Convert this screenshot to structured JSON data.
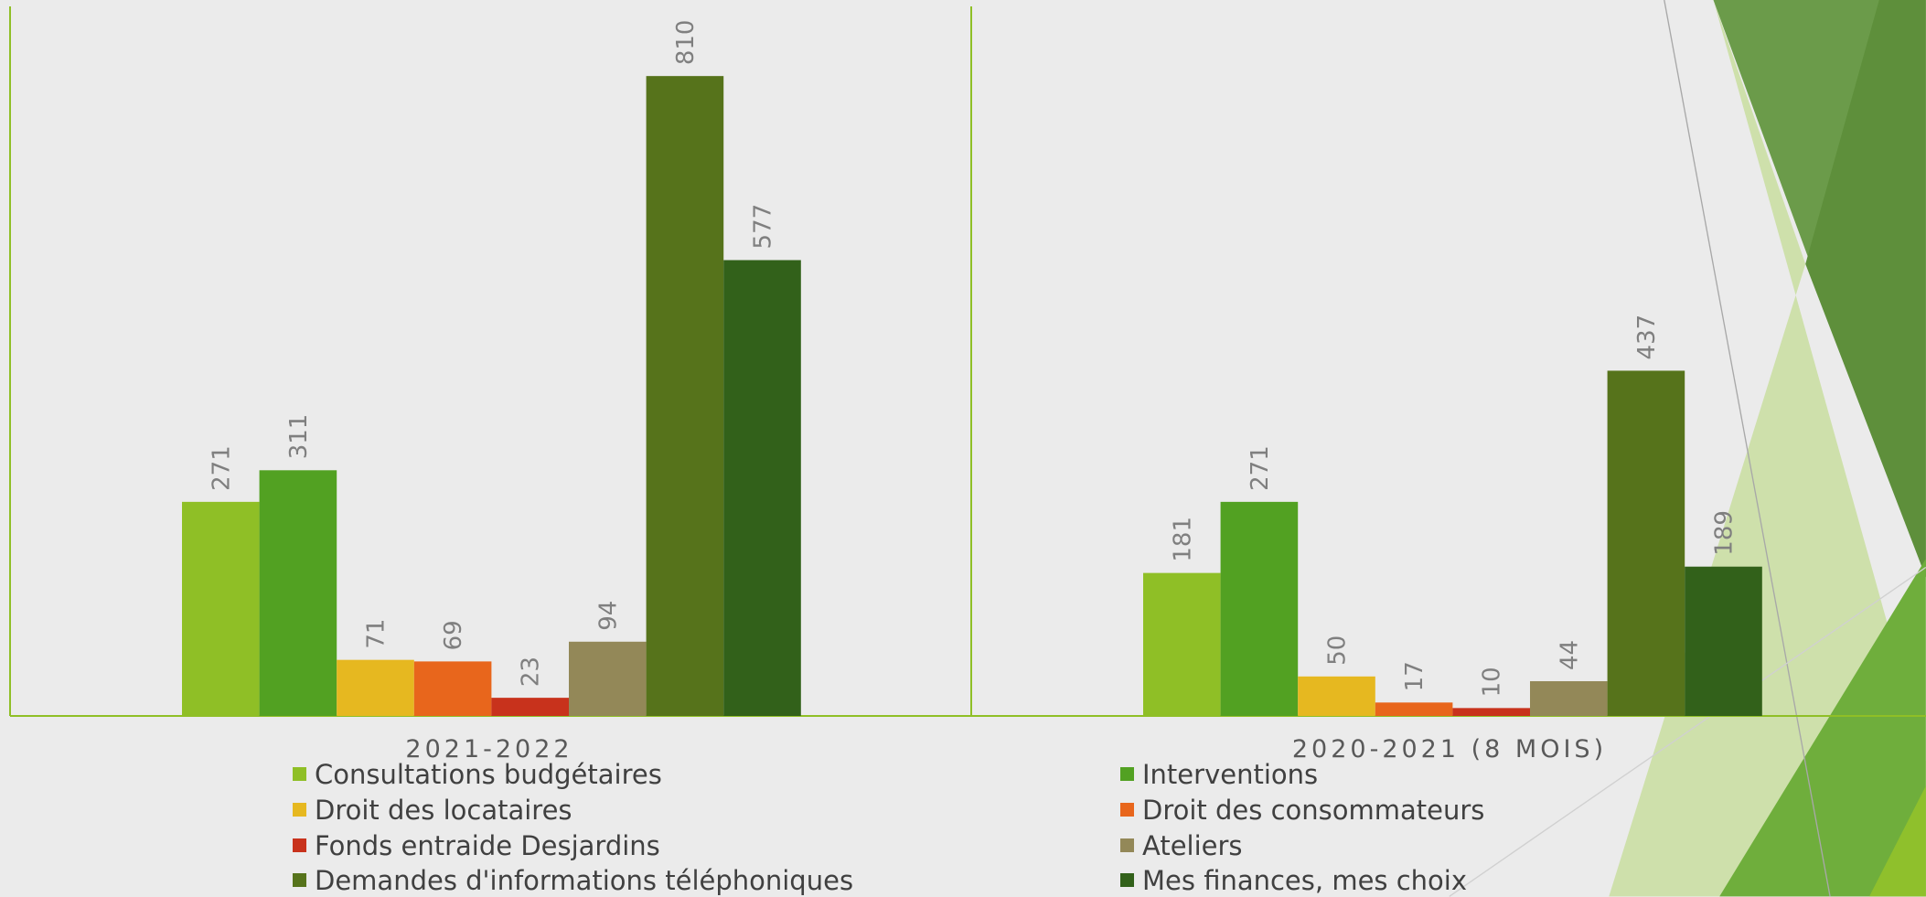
{
  "chart_data": {
    "type": "bar",
    "categories": [
      "2021-2022",
      "2020-2021 (8 MOIS)"
    ],
    "series": [
      {
        "name": "Consultations budgétaires",
        "color": "#8fbf26",
        "values": [
          271,
          181
        ]
      },
      {
        "name": "Interventions",
        "color": "#52a122",
        "values": [
          311,
          271
        ]
      },
      {
        "name": "Droit des locataires",
        "color": "#e6b820",
        "values": [
          71,
          50
        ]
      },
      {
        "name": "Droit des consommateurs",
        "color": "#e8661c",
        "values": [
          69,
          17
        ]
      },
      {
        "name": "Fonds entraide Desjardins",
        "color": "#c8321c",
        "values": [
          23,
          10
        ]
      },
      {
        "name": "Ateliers",
        "color": "#938858",
        "values": [
          94,
          44
        ]
      },
      {
        "name": "Demandes d'informations téléphoniques",
        "color": "#56731b",
        "values": [
          810,
          437
        ]
      },
      {
        "name": "Mes finances, mes choix",
        "color": "#32611a",
        "values": [
          577,
          189
        ]
      }
    ]
  }
}
